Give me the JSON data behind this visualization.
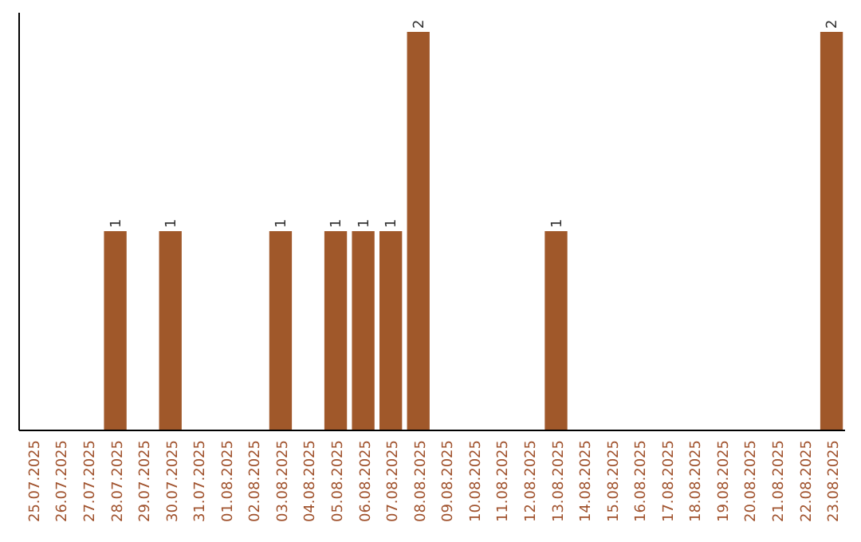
{
  "chart_data": {
    "type": "bar",
    "categories": [
      "25.07.2025",
      "26.07.2025",
      "27.07.2025",
      "28.07.2025",
      "29.07.2025",
      "30.07.2025",
      "31.07.2025",
      "01.08.2025",
      "02.08.2025",
      "03.08.2025",
      "04.08.2025",
      "05.08.2025",
      "06.08.2025",
      "07.08.2025",
      "08.08.2025",
      "09.08.2025",
      "10.08.2025",
      "11.08.2025",
      "12.08.2025",
      "13.08.2025",
      "14.08.2025",
      "15.08.2025",
      "16.08.2025",
      "17.08.2025",
      "18.08.2025",
      "19.08.2025",
      "20.08.2025",
      "21.08.2025",
      "22.08.2025",
      "23.08.2025"
    ],
    "values": [
      0,
      0,
      0,
      1,
      0,
      1,
      0,
      0,
      0,
      1,
      0,
      1,
      1,
      1,
      2,
      0,
      0,
      0,
      0,
      1,
      0,
      0,
      0,
      0,
      0,
      0,
      0,
      0,
      0,
      2
    ],
    "value_labels": [
      null,
      null,
      null,
      "1",
      null,
      "1",
      null,
      null,
      null,
      "1",
      null,
      "1",
      "1",
      "1",
      "2",
      null,
      null,
      null,
      null,
      "1",
      null,
      null,
      null,
      null,
      null,
      null,
      null,
      null,
      null,
      "2"
    ],
    "color": "#a0582a",
    "tick_labels": "x"
  }
}
